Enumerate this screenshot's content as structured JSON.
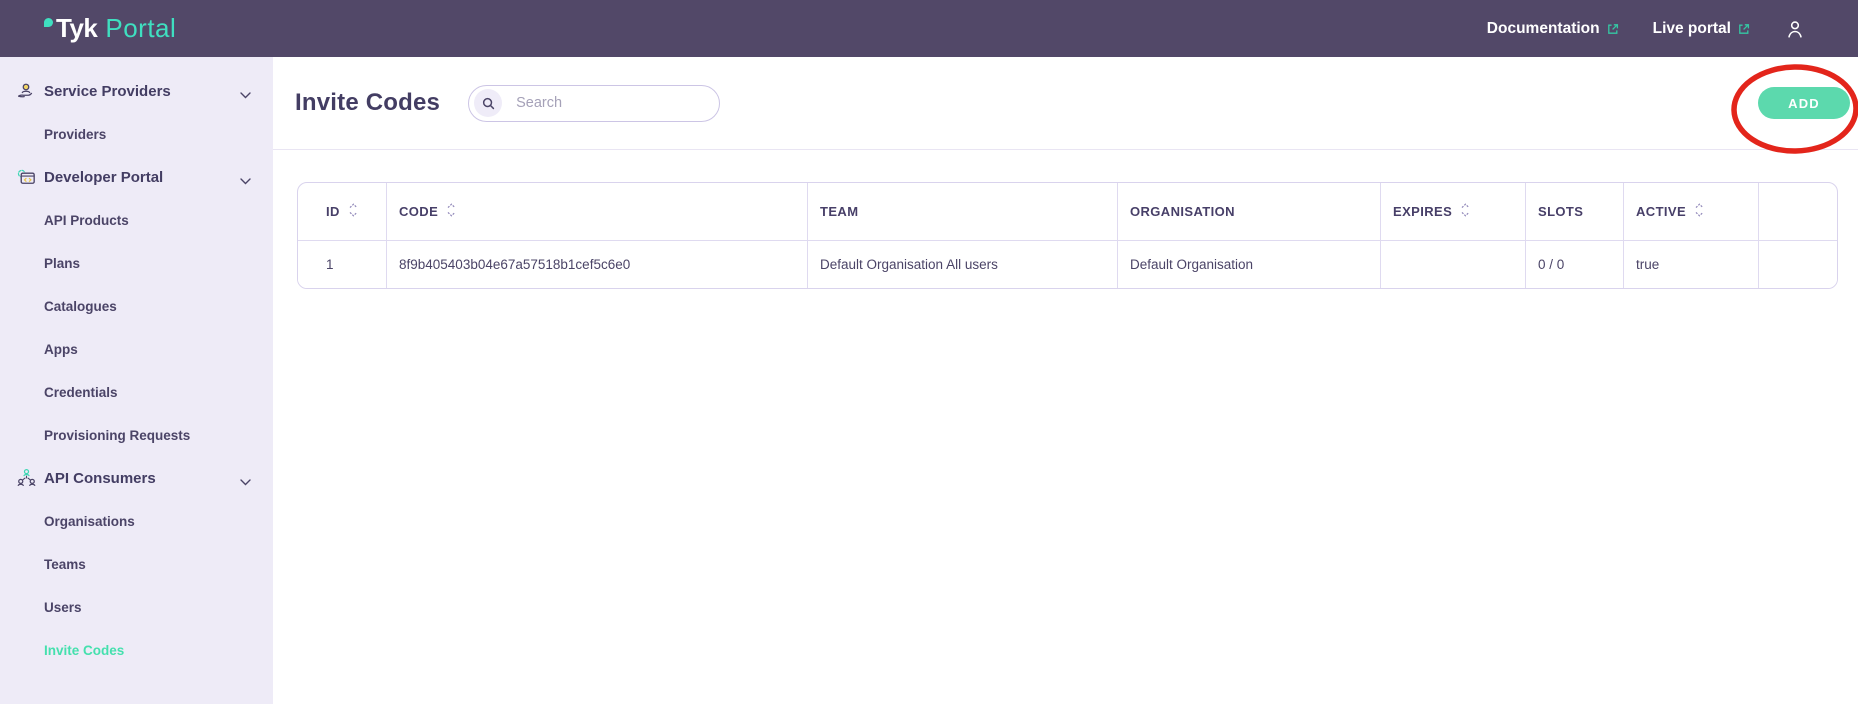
{
  "topbar": {
    "logo": {
      "brand": "Tyk",
      "product": "Portal"
    },
    "links": [
      {
        "label": "Documentation",
        "icon": "external-link-icon"
      },
      {
        "label": "Live portal",
        "icon": "external-link-icon"
      }
    ],
    "user_icon": "user-icon"
  },
  "sidebar": {
    "sections": [
      {
        "label": "Service Providers",
        "icon": "service-providers-icon",
        "expanded": true,
        "items": [
          {
            "label": "Providers",
            "active": false
          }
        ]
      },
      {
        "label": "Developer Portal",
        "icon": "developer-portal-icon",
        "expanded": true,
        "items": [
          {
            "label": "API Products",
            "active": false
          },
          {
            "label": "Plans",
            "active": false
          },
          {
            "label": "Catalogues",
            "active": false
          },
          {
            "label": "Apps",
            "active": false
          },
          {
            "label": "Credentials",
            "active": false
          },
          {
            "label": "Provisioning Requests",
            "active": false
          }
        ]
      },
      {
        "label": "API Consumers",
        "icon": "api-consumers-icon",
        "expanded": true,
        "items": [
          {
            "label": "Organisations",
            "active": false
          },
          {
            "label": "Teams",
            "active": false
          },
          {
            "label": "Users",
            "active": false
          },
          {
            "label": "Invite Codes",
            "active": true
          }
        ]
      }
    ]
  },
  "page": {
    "title": "Invite Codes",
    "search_placeholder": "Search",
    "search_value": "",
    "add_button": "ADD"
  },
  "table": {
    "columns": [
      {
        "label": "ID",
        "sortable": true
      },
      {
        "label": "CODE",
        "sortable": true
      },
      {
        "label": "TEAM",
        "sortable": false
      },
      {
        "label": "ORGANISATION",
        "sortable": false
      },
      {
        "label": "EXPIRES",
        "sortable": true
      },
      {
        "label": "SLOTS",
        "sortable": false
      },
      {
        "label": "ACTIVE",
        "sortable": true
      },
      {
        "label": "",
        "sortable": false
      }
    ],
    "rows": [
      [
        "1",
        "8f9b405403b04e67a57518b1cef5c6e0",
        "Default Organisation All users",
        "Default Organisation",
        "",
        "0 / 0",
        "true",
        ""
      ]
    ]
  },
  "colors": {
    "topbar_bg": "#524868",
    "sidebar_bg": "#EEEBF7",
    "brand_teal": "#3FDFC0",
    "active_item": "#45E0AE",
    "add_button": "#5CD9AD",
    "text_dark_purple": "#433D63",
    "table_border": "#D9D3ED",
    "annotation_red": "#E3251B"
  }
}
